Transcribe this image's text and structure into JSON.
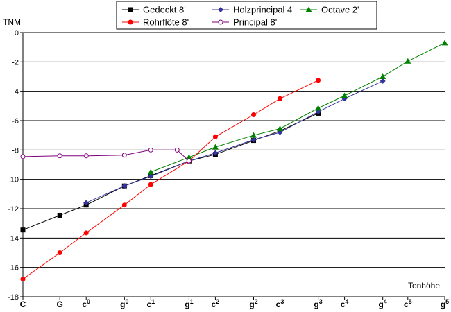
{
  "chart_data": {
    "type": "line",
    "xlabel": "Tonhöhe",
    "ylabel": "TNM",
    "ylim": [
      -18,
      0
    ],
    "yticks": [
      0,
      -2,
      -4,
      -6,
      -8,
      -10,
      -12,
      -14,
      -16,
      -18
    ],
    "y_tick_labels": [
      "0",
      "-2",
      "-4",
      "-6",
      "-8",
      "-10",
      "-12",
      "-14",
      "-16",
      "-18"
    ],
    "xlim": [
      0,
      16
    ],
    "grid": "horizontal",
    "legend_position": "top-center",
    "x_ticks": [
      {
        "x": 0,
        "base": "C",
        "sup": ""
      },
      {
        "x": 1.4,
        "base": "G",
        "sup": ""
      },
      {
        "x": 2.4,
        "base": "c",
        "sup": "0"
      },
      {
        "x": 3.85,
        "base": "g",
        "sup": "0"
      },
      {
        "x": 4.85,
        "base": "c",
        "sup": "1"
      },
      {
        "x": 6.3,
        "base": "g",
        "sup": "1"
      },
      {
        "x": 7.3,
        "base": "c",
        "sup": "2"
      },
      {
        "x": 8.75,
        "base": "g",
        "sup": "2"
      },
      {
        "x": 9.75,
        "base": "c",
        "sup": "3"
      },
      {
        "x": 11.2,
        "base": "g",
        "sup": "3"
      },
      {
        "x": 12.2,
        "base": "c",
        "sup": "4"
      },
      {
        "x": 13.65,
        "base": "g",
        "sup": "4"
      },
      {
        "x": 14.6,
        "base": "c",
        "sup": "5"
      },
      {
        "x": 16,
        "base": "g",
        "sup": "5"
      }
    ],
    "series": [
      {
        "name": "Gedeckt 8'",
        "color": "#000000",
        "marker": "square",
        "points": [
          [
            0,
            -13.45
          ],
          [
            1.4,
            -12.45
          ],
          [
            2.4,
            -11.75
          ],
          [
            3.85,
            -10.45
          ],
          [
            4.85,
            -9.75
          ],
          [
            6.3,
            -8.75
          ],
          [
            7.3,
            -8.3
          ],
          [
            8.75,
            -7.35
          ],
          [
            9.75,
            -6.7
          ],
          [
            11.2,
            -5.5
          ]
        ]
      },
      {
        "name": "Holzprincipal 4'",
        "color": "#333399",
        "marker": "diamond",
        "points": [
          [
            2.4,
            -11.6
          ],
          [
            3.85,
            -10.45
          ],
          [
            4.85,
            -9.8
          ],
          [
            6.3,
            -8.75
          ],
          [
            7.3,
            -8.2
          ],
          [
            8.75,
            -7.3
          ],
          [
            9.75,
            -6.8
          ],
          [
            11.2,
            -5.4
          ],
          [
            12.2,
            -4.5
          ],
          [
            13.65,
            -3.3
          ]
        ]
      },
      {
        "name": "Octave 2'",
        "color": "#008000",
        "marker": "triangle",
        "points": [
          [
            4.85,
            -9.5
          ],
          [
            6.3,
            -8.5
          ],
          [
            7.3,
            -7.8
          ],
          [
            8.75,
            -7.0
          ],
          [
            9.75,
            -6.55
          ],
          [
            11.2,
            -5.15
          ],
          [
            12.2,
            -4.3
          ],
          [
            13.65,
            -3.0
          ],
          [
            14.6,
            -1.95
          ],
          [
            16,
            -0.7
          ]
        ]
      },
      {
        "name": "Rohrflöte 8'",
        "color": "#ff0000",
        "marker": "circle",
        "points": [
          [
            0,
            -16.8
          ],
          [
            1.4,
            -15.0
          ],
          [
            2.4,
            -13.65
          ],
          [
            3.85,
            -11.75
          ],
          [
            4.85,
            -10.35
          ],
          [
            6.3,
            -8.75
          ],
          [
            7.3,
            -7.1
          ],
          [
            8.75,
            -5.6
          ],
          [
            9.75,
            -4.5
          ],
          [
            11.2,
            -3.25
          ]
        ]
      },
      {
        "name": "Principal 8'",
        "color": "#800080",
        "marker": "open-circle",
        "points": [
          [
            0,
            -8.45
          ],
          [
            1.4,
            -8.4
          ],
          [
            2.4,
            -8.4
          ],
          [
            3.85,
            -8.35
          ],
          [
            4.85,
            -8.0
          ],
          [
            5.85,
            -8.0
          ],
          [
            6.3,
            -8.75
          ]
        ]
      }
    ]
  }
}
